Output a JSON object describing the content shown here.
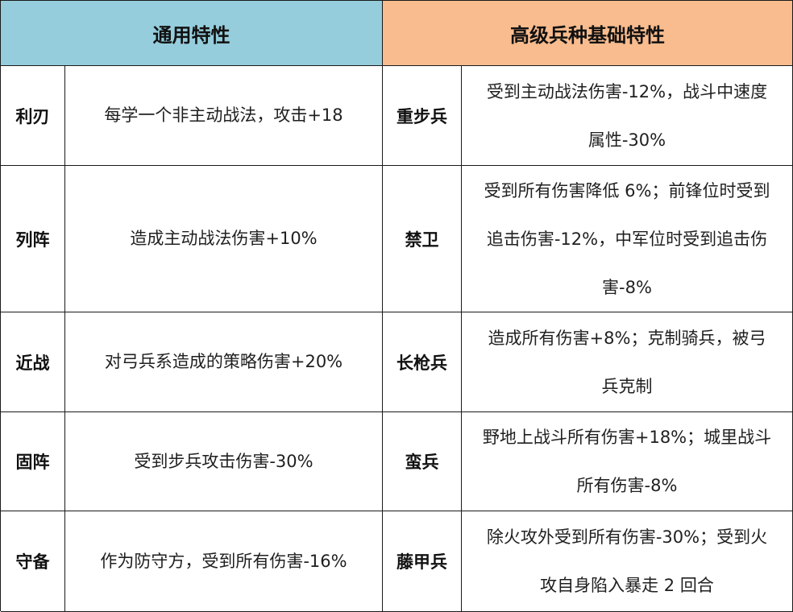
{
  "headers": {
    "general": "通用特性",
    "advanced": "高级兵种基础特性"
  },
  "rows": [
    {
      "trait": "利刃",
      "trait_desc": "每学一个非主动战法，攻击+18",
      "unit": "重步兵",
      "unit_desc": [
        "受到主动战法伤害-12%，战斗中速度",
        "属性-30%"
      ]
    },
    {
      "trait": "列阵",
      "trait_desc": "造成主动战法伤害+10%",
      "unit": "禁卫",
      "unit_desc": [
        "受到所有伤害降低 6%；前锋位时受到",
        "追击伤害-12%，中军位时受到追击伤",
        "害-8%"
      ]
    },
    {
      "trait": "近战",
      "trait_desc": "对弓兵系造成的策略伤害+20%",
      "unit": "长枪兵",
      "unit_desc": [
        "造成所有伤害+8%；克制骑兵，被弓",
        "兵克制"
      ]
    },
    {
      "trait": "固阵",
      "trait_desc": "受到步兵攻击伤害-30%",
      "unit": "蛮兵",
      "unit_desc": [
        "野地上战斗所有伤害+18%；城里战斗",
        "所有伤害-8%"
      ]
    },
    {
      "trait": "守备",
      "trait_desc": "作为防守方，受到所有伤害-16%",
      "unit": "藤甲兵",
      "unit_desc": [
        "除火攻外受到所有伤害-30%；受到火",
        "攻自身陷入暴走 2 回合"
      ]
    }
  ]
}
